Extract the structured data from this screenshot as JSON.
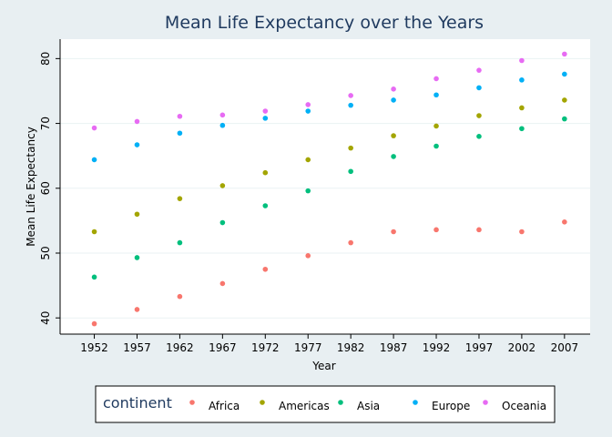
{
  "chart_data": {
    "type": "scatter",
    "title": "Mean Life Expectancy over the Years",
    "xlabel": "Year",
    "ylabel": "Mean Life Expectancy",
    "x": [
      1952,
      1957,
      1962,
      1967,
      1972,
      1977,
      1982,
      1987,
      1992,
      1997,
      2002,
      2007
    ],
    "xlim": [
      1948,
      2010
    ],
    "ylim": [
      37.5,
      83
    ],
    "yticks": [
      40,
      50,
      60,
      70,
      80
    ],
    "grid": true,
    "legend": {
      "title": "continent",
      "position": "bottom"
    },
    "series": [
      {
        "name": "Africa",
        "color": "#f8766d",
        "values": [
          39.1,
          41.3,
          43.3,
          45.3,
          47.5,
          49.6,
          51.6,
          53.3,
          53.6,
          53.6,
          53.3,
          54.8
        ]
      },
      {
        "name": "Americas",
        "color": "#a3a500",
        "values": [
          53.3,
          56.0,
          58.4,
          60.4,
          62.4,
          64.4,
          66.2,
          68.1,
          69.6,
          71.2,
          72.4,
          73.6
        ]
      },
      {
        "name": "Asia",
        "color": "#00bf7d",
        "values": [
          46.3,
          49.3,
          51.6,
          54.7,
          57.3,
          59.6,
          62.6,
          64.9,
          66.5,
          68.0,
          69.2,
          70.7
        ]
      },
      {
        "name": "Europe",
        "color": "#00b0f6",
        "values": [
          64.4,
          66.7,
          68.5,
          69.7,
          70.8,
          71.9,
          72.8,
          73.6,
          74.4,
          75.5,
          76.7,
          77.6
        ]
      },
      {
        "name": "Oceania",
        "color": "#e76bf3",
        "values": [
          69.3,
          70.3,
          71.1,
          71.3,
          71.9,
          72.9,
          74.3,
          75.3,
          76.9,
          78.2,
          79.7,
          80.7
        ]
      }
    ]
  }
}
